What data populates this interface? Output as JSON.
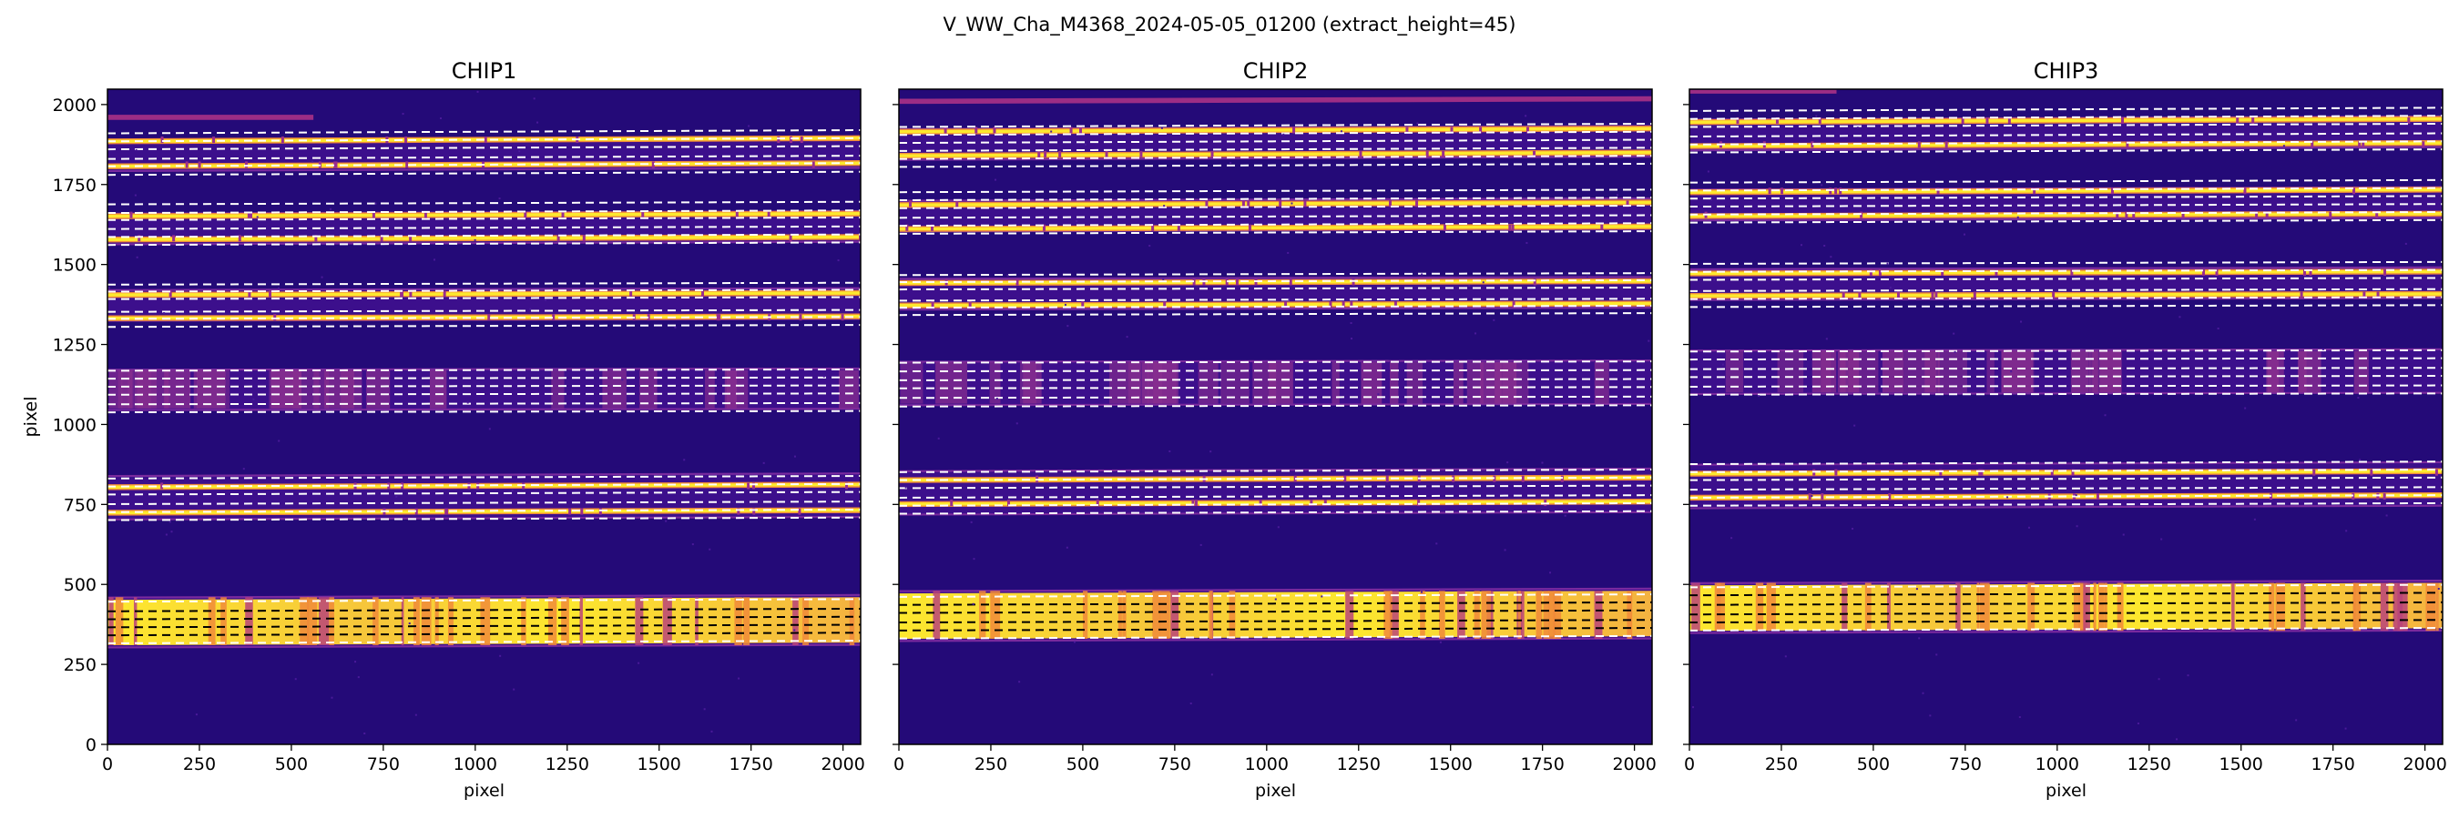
{
  "figure": {
    "suptitle": "V_WW_Cha_M4368_2024-05-05_01200  (extract_height=45)",
    "xlabel": "pixel",
    "ylabel": "pixel",
    "x_ticks": [
      "0",
      "250",
      "500",
      "750",
      "1000",
      "1250",
      "1500",
      "1750",
      "2000"
    ],
    "y_ticks": [
      "0",
      "250",
      "500",
      "750",
      "1000",
      "1250",
      "1500",
      "1750",
      "2000"
    ]
  },
  "colors": {
    "background": "#240a78",
    "gap": "#1c0a68",
    "order_edge": "#7a2a9e",
    "bright": "#fde82e",
    "mid": "#f08a3a",
    "trace_line": "#ffffff"
  },
  "chart_data": [
    {
      "type": "heatmap",
      "title": "CHIP1",
      "xlabel": "pixel",
      "ylabel": "pixel",
      "xlim": [
        0,
        2048
      ],
      "ylim": [
        0,
        2048
      ],
      "colormap": "plasma",
      "orders": [
        {
          "center": 1960,
          "halfwidth": 8,
          "kind": "faint",
          "x_end": 560,
          "slope": 0
        },
        {
          "center": 1845,
          "halfwidth": 45,
          "kind": "line",
          "bright": [
            1890,
            1812
          ],
          "traces": [
            1915,
            1890,
            1865,
            1835,
            1812,
            1785
          ],
          "slope": 10
        },
        {
          "center": 1615,
          "halfwidth": 45,
          "kind": "line",
          "bright": [
            1655,
            1582
          ],
          "traces": [
            1692,
            1665,
            1643,
            1615,
            1590,
            1565
          ],
          "slope": 8
        },
        {
          "center": 1375,
          "halfwidth": 45,
          "kind": "line",
          "bright": [
            1408,
            1335
          ],
          "traces": [
            1440,
            1418,
            1395,
            1355,
            1333,
            1308
          ],
          "slope": 6
        },
        {
          "center": 1110,
          "halfwidth": 60,
          "kind": "medium",
          "bright": [],
          "traces": [
            1170,
            1145,
            1120,
            1095,
            1065,
            1040
          ],
          "slope": 4
        },
        {
          "center": 775,
          "halfwidth": 65,
          "kind": "line",
          "bright": [
            808,
            728
          ],
          "traces": [
            835,
            810,
            785,
            755,
            730,
            705
          ],
          "slope": 8
        },
        {
          "center": 385,
          "halfwidth": 75,
          "kind": "saturated",
          "bright": [],
          "traces": [
            450,
            420,
            395,
            370,
            345,
            320
          ],
          "slope": 8
        }
      ]
    },
    {
      "type": "heatmap",
      "title": "CHIP2",
      "xlabel": "pixel",
      "xlim": [
        0,
        2048
      ],
      "ylim": [
        0,
        2048
      ],
      "colormap": "plasma",
      "orders": [
        {
          "center": 2010,
          "halfwidth": 8,
          "kind": "faint",
          "x_end": 2048,
          "slope": 8
        },
        {
          "center": 1880,
          "halfwidth": 45,
          "kind": "line",
          "bright": [
            1920,
            1845
          ],
          "traces": [
            1935,
            1910,
            1885,
            1860,
            1835,
            1810
          ],
          "slope": 10
        },
        {
          "center": 1655,
          "halfwidth": 45,
          "kind": "line",
          "bright": [
            1690,
            1615
          ],
          "traces": [
            1730,
            1705,
            1680,
            1650,
            1625,
            1600
          ],
          "slope": 8
        },
        {
          "center": 1410,
          "halfwidth": 45,
          "kind": "line",
          "bright": [
            1445,
            1375
          ],
          "traces": [
            1470,
            1448,
            1425,
            1390,
            1368,
            1345
          ],
          "slope": 6
        },
        {
          "center": 1130,
          "halfwidth": 65,
          "kind": "medium",
          "bright": [],
          "traces": [
            1195,
            1168,
            1140,
            1115,
            1085,
            1058
          ],
          "slope": 4
        },
        {
          "center": 790,
          "halfwidth": 65,
          "kind": "line",
          "bright": [
            830,
            755
          ],
          "traces": [
            855,
            830,
            805,
            775,
            750,
            725
          ],
          "slope": 8
        },
        {
          "center": 405,
          "halfwidth": 75,
          "kind": "saturated",
          "bright": [],
          "traces": [
            465,
            440,
            415,
            385,
            360,
            335
          ],
          "slope": 8
        }
      ]
    },
    {
      "type": "heatmap",
      "title": "CHIP3",
      "xlabel": "pixel",
      "xlim": [
        0,
        2048
      ],
      "ylim": [
        0,
        2048
      ],
      "colormap": "plasma",
      "orders": [
        {
          "center": 2040,
          "halfwidth": 6,
          "kind": "faint",
          "x_end": 400,
          "slope": 0
        },
        {
          "center": 1910,
          "halfwidth": 45,
          "kind": "line",
          "bright": [
            1950,
            1875
          ],
          "traces": [
            1985,
            1960,
            1935,
            1905,
            1880,
            1855
          ],
          "slope": 10
        },
        {
          "center": 1690,
          "halfwidth": 45,
          "kind": "line",
          "bright": [
            1730,
            1655
          ],
          "traces": [
            1760,
            1735,
            1710,
            1685,
            1660,
            1635
          ],
          "slope": 8
        },
        {
          "center": 1440,
          "halfwidth": 45,
          "kind": "line",
          "bright": [
            1475,
            1405
          ],
          "traces": [
            1505,
            1480,
            1455,
            1420,
            1395,
            1370
          ],
          "slope": 6
        },
        {
          "center": 1165,
          "halfwidth": 65,
          "kind": "medium",
          "bright": [],
          "traces": [
            1230,
            1205,
            1175,
            1150,
            1120,
            1095
          ],
          "slope": 4
        },
        {
          "center": 810,
          "halfwidth": 65,
          "kind": "line",
          "bright": [
            850,
            775
          ],
          "traces": [
            880,
            855,
            830,
            800,
            775,
            750
          ],
          "slope": 8
        },
        {
          "center": 430,
          "halfwidth": 75,
          "kind": "saturated",
          "bright": [],
          "traces": [
            495,
            470,
            440,
            410,
            385,
            360
          ],
          "slope": 8
        }
      ]
    }
  ]
}
